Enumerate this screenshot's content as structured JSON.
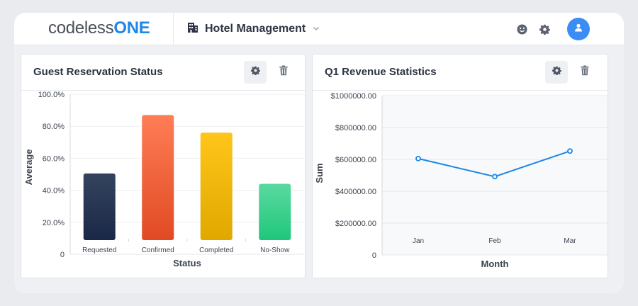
{
  "app": {
    "logo_text": "codeless",
    "logo_accent": "ONE",
    "name": "Hotel Management",
    "accent_color": "#1e88e5"
  },
  "icons": [
    "building-icon",
    "chevron-down-icon",
    "smiley-icon",
    "gear-icon",
    "user-icon",
    "trash-icon"
  ],
  "cards": {
    "reservations": {
      "title": "Guest Reservation Status"
    },
    "revenue": {
      "title": "Q1 Revenue Statistics"
    }
  },
  "chart_data": [
    {
      "type": "bar",
      "categories": [
        "Requested",
        "Confirmed",
        "Completed",
        "No-Show"
      ],
      "values": [
        50.5,
        87.0,
        76.0,
        44.0
      ],
      "colors": [
        [
          "#34435e",
          "#1a2847"
        ],
        [
          "#ff7d55",
          "#e04a24"
        ],
        [
          "#ffc51a",
          "#e0a800"
        ],
        [
          "#5ad9a0",
          "#1fc77b"
        ]
      ],
      "ylim": [
        0,
        100
      ],
      "yticks": [
        "100.0%",
        "80.0%",
        "60.0%",
        "40.0%",
        "20.0%",
        "0"
      ],
      "ytick_values": [
        100,
        80,
        60,
        40,
        20,
        0
      ],
      "xlabel": "Status",
      "ylabel": "Average",
      "grid": true
    },
    {
      "type": "line",
      "x": [
        "Jan",
        "Feb",
        "Mar"
      ],
      "values": [
        605000,
        492000,
        652000
      ],
      "color": "#1e88e5",
      "ylim": [
        0,
        1000000
      ],
      "yticks": [
        "$1000000.00",
        "$800000.00",
        "$600000.00",
        "$400000.00",
        "$200000.00",
        "0"
      ],
      "ytick_values": [
        1000000,
        800000,
        600000,
        400000,
        200000,
        0
      ],
      "xlabel": "Month",
      "ylabel": "Sum",
      "grid": true
    }
  ]
}
